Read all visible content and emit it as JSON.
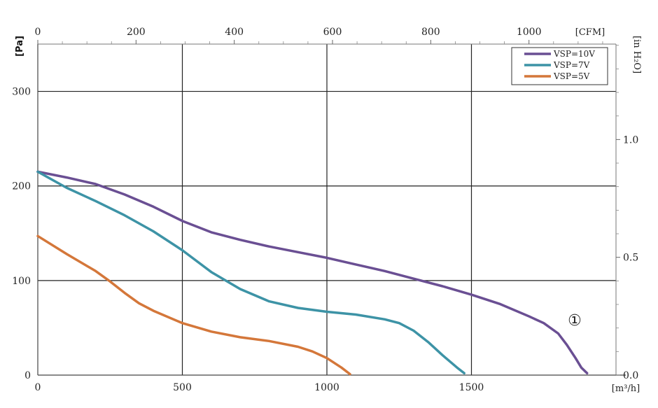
{
  "chart_data": {
    "type": "line",
    "x_unit": "[m³/h]",
    "x_secondary_unit": "[CFM]",
    "y_unit": "[Pa]",
    "y_secondary_unit": "[in H₂O]",
    "xlim": [
      0,
      2000
    ],
    "ylim": [
      0,
      350
    ],
    "x_ticks": [
      0,
      500,
      1000,
      1500
    ],
    "x_tick_labels": [
      "0",
      "500",
      "1000",
      "1500"
    ],
    "y_ticks": [
      0,
      100,
      200,
      300
    ],
    "y_tick_labels": [
      "0",
      "100",
      "200",
      "300"
    ],
    "x2_ticks": [
      0,
      200,
      400,
      600,
      800,
      1000
    ],
    "x2_tick_labels": [
      "0",
      "200",
      "400",
      "600",
      "800",
      "1000"
    ],
    "y2_ticks": [
      0.0,
      0.5,
      1.0
    ],
    "y2_tick_labels": [
      "0.0",
      "0.5",
      "1.0"
    ],
    "grid": true,
    "legend_position": "top-right",
    "curve_marker": "①",
    "series": [
      {
        "name": "VSP=10V",
        "color": "#6a4f93",
        "x": [
          0,
          100,
          200,
          300,
          400,
          500,
          600,
          700,
          800,
          900,
          1000,
          1100,
          1200,
          1300,
          1400,
          1500,
          1600,
          1700,
          1750,
          1800,
          1830,
          1860,
          1880,
          1900
        ],
        "y": [
          215,
          209,
          202,
          191,
          178,
          163,
          151,
          143,
          136,
          130,
          124,
          117,
          110,
          102,
          94,
          85,
          75,
          62,
          55,
          44,
          32,
          18,
          8,
          2
        ]
      },
      {
        "name": "VSP=7V",
        "color": "#3d93a6",
        "x": [
          0,
          100,
          200,
          300,
          400,
          500,
          600,
          700,
          800,
          900,
          1000,
          1100,
          1200,
          1250,
          1300,
          1350,
          1400,
          1450,
          1475
        ],
        "y": [
          215,
          198,
          184,
          169,
          152,
          132,
          109,
          91,
          78,
          71,
          67,
          64,
          59,
          55,
          47,
          35,
          21,
          8,
          2
        ]
      },
      {
        "name": "VSP=5V",
        "color": "#d4773a",
        "x": [
          0,
          100,
          200,
          250,
          300,
          350,
          400,
          500,
          600,
          700,
          800,
          900,
          950,
          1000,
          1050,
          1080
        ],
        "y": [
          147,
          128,
          110,
          99,
          87,
          76,
          68,
          55,
          46,
          40,
          36,
          30,
          25,
          18,
          8,
          1
        ]
      }
    ]
  }
}
